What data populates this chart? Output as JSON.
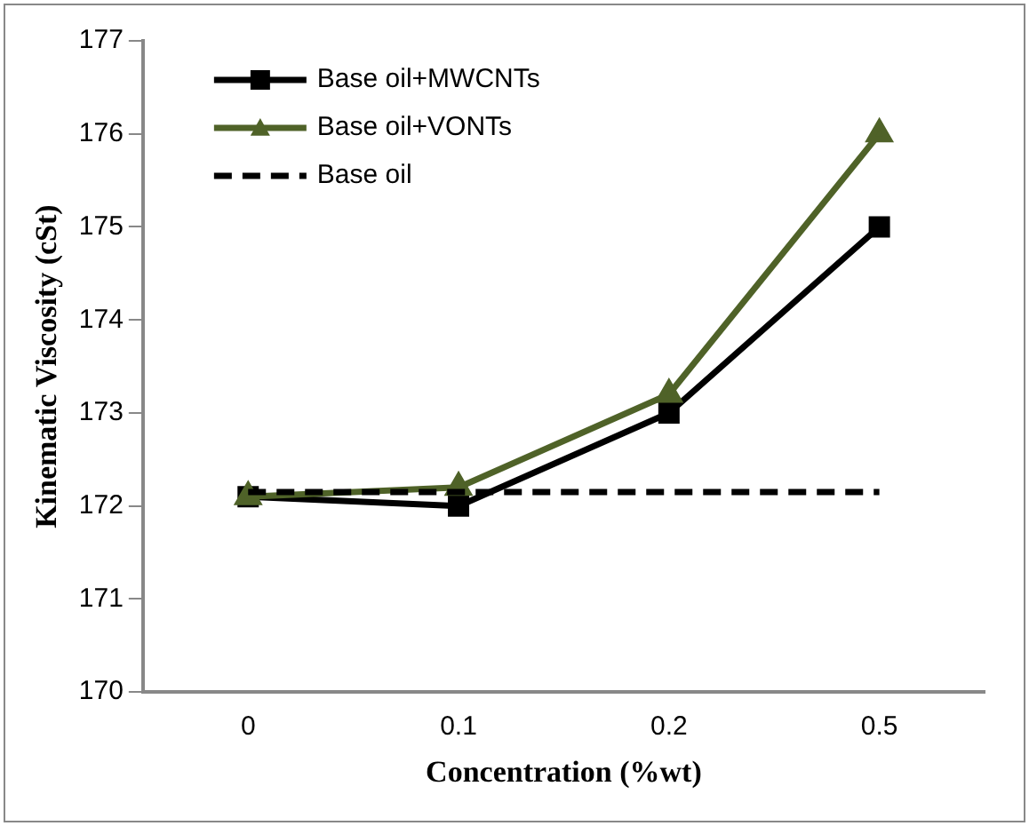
{
  "chart_data": {
    "type": "line",
    "xlabel": "Concentration (%wt)",
    "ylabel": "Kinematic Viscosity (cSt)",
    "categories": [
      "0",
      "0.1",
      "0.2",
      "0.5"
    ],
    "series": [
      {
        "name": "Base oil+MWCNTs",
        "color": "#000000",
        "marker": "square",
        "values": [
          172.1,
          172.0,
          173.0,
          175.0
        ]
      },
      {
        "name": "Base oil+VONTs",
        "color": "#4f6228",
        "marker": "triangle",
        "values": [
          172.1,
          172.2,
          173.2,
          176.0
        ]
      },
      {
        "name": "Base oil",
        "color": "#000000",
        "marker": "none",
        "line_style": "dashed",
        "values": [
          172.15,
          172.15,
          172.15,
          172.15
        ]
      }
    ],
    "ylim": [
      170,
      177
    ],
    "yticks": [
      170,
      171,
      172,
      173,
      174,
      175,
      176,
      177
    ],
    "grid": false,
    "legend": "top left"
  }
}
